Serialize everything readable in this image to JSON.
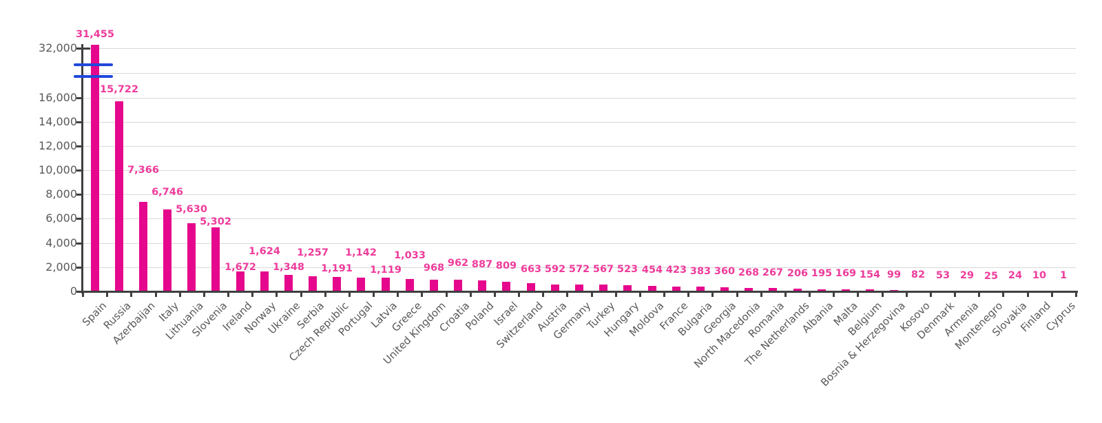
{
  "chart_data": {
    "type": "bar",
    "title": "",
    "xlabel": "",
    "ylabel": "",
    "legend": false,
    "grid": true,
    "categories": [
      "Spain",
      "Russia",
      "Azerbaijan",
      "Italy",
      "Lithuania",
      "Slovenia",
      "Ireland",
      "Norway",
      "Ukraine",
      "Serbia",
      "Czech Republic",
      "Portugal",
      "Latvia",
      "Greece",
      "United Kingdom",
      "Croatia",
      "Poland",
      "Israel",
      "Switzerland",
      "Austria",
      "Germany",
      "Turkey",
      "Hungary",
      "Moldova",
      "France",
      "Bulgaria",
      "Georgia",
      "North Macedonia",
      "Romania",
      "The Netherlands",
      "Albania",
      "Malta",
      "Belgium",
      "Bosnia & Herzegovina",
      "Kosovo",
      "Denmark",
      "Armenia",
      "Montenegro",
      "Slovakia",
      "Finland",
      "Cyprus"
    ],
    "values": [
      31455,
      15722,
      7366,
      6746,
      5630,
      5302,
      1672,
      1624,
      1348,
      1257,
      1191,
      1142,
      1119,
      1033,
      968,
      962,
      887,
      809,
      663,
      592,
      572,
      567,
      523,
      454,
      423,
      383,
      360,
      268,
      267,
      206,
      195,
      169,
      154,
      99,
      82,
      53,
      29,
      25,
      24,
      10,
      1
    ],
    "value_labels": [
      "31,455",
      "15,722",
      "7,366",
      "6,746",
      "5,630",
      "5,302",
      "1,672",
      "1,624",
      "1,348",
      "1,257",
      "1,191",
      "1,142",
      "1,119",
      "1,033",
      "968",
      "962",
      "887",
      "809",
      "663",
      "592",
      "572",
      "567",
      "523",
      "454",
      "423",
      "383",
      "360",
      "268",
      "267",
      "206",
      "195",
      "169",
      "154",
      "99",
      "82",
      "53",
      "29",
      "25",
      "24",
      "10",
      "1"
    ],
    "y_axis": {
      "ticks": [
        {
          "label": "32,000",
          "value": 32000
        },
        {
          "label": "16,000",
          "value": 16000
        },
        {
          "label": "14,000",
          "value": 14000
        },
        {
          "label": "12,000",
          "value": 12000
        },
        {
          "label": "10,000",
          "value": 10000
        },
        {
          "label": "8,000",
          "value": 8000
        },
        {
          "label": "6,000",
          "value": 6000
        },
        {
          "label": "4,000",
          "value": 4000
        },
        {
          "label": "2,000",
          "value": 2000
        },
        {
          "label": "0",
          "value": 0
        }
      ],
      "axis_break": {
        "between": [
          16000,
          32000
        ],
        "marker": "double-blue-lines"
      }
    },
    "colors": {
      "bar": "#e5078c",
      "value_label": "#ee3c9c",
      "gridline": "#d9d9d9",
      "axis": "#3f3f3f",
      "tick_label": "#595959",
      "break_marker": "#1f49db",
      "background": "#ffffff"
    }
  }
}
